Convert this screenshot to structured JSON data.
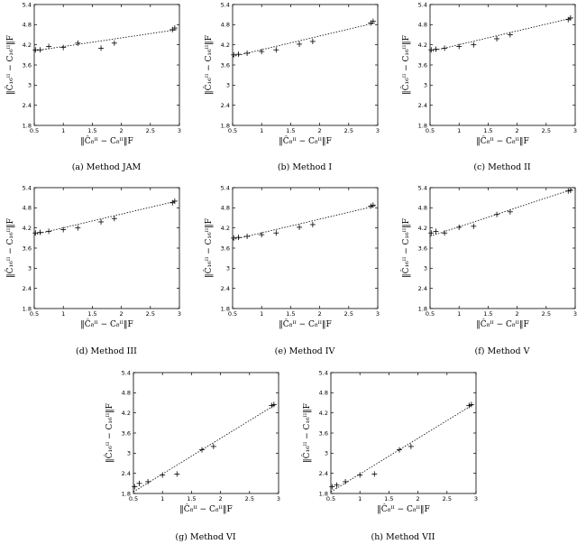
{
  "figure": {
    "chart_data": [
      {
        "type": "scatter",
        "caption": "(a) Method JAM",
        "xlabel": "‖Ĉ₈ᴵᴵ − C₈ᴵᴵ‖F",
        "ylabel": "‖Ĉ₁₆ᴵᴵ − C₁₆ᴵᴵ‖F",
        "xlim": [
          0.5,
          3
        ],
        "ylim": [
          1.8,
          5.4
        ],
        "xticks": [
          "0.5",
          "1",
          "1.5",
          "2",
          "2.5",
          "3"
        ],
        "yticks": [
          "1.8",
          "2.4",
          "3",
          "3.6",
          "4.2",
          "4.8",
          "5.4"
        ],
        "x": [
          0.52,
          0.6,
          0.75,
          1.0,
          1.25,
          1.65,
          1.88,
          2.88,
          2.92
        ],
        "y": [
          4.05,
          4.05,
          4.15,
          4.12,
          4.25,
          4.1,
          4.25,
          4.65,
          4.7
        ],
        "fit": [
          [
            0.5,
            4.02
          ],
          [
            2.95,
            4.65
          ]
        ]
      },
      {
        "type": "scatter",
        "caption": "(b) Method I",
        "xlabel": "‖Ĉ₈ᴵᴵ − C₈ᴵᴵ‖F",
        "ylabel": "‖Ĉ₁₆ᴵᴵ − C₁₆ᴵᴵ‖F",
        "xlim": [
          0.5,
          3
        ],
        "ylim": [
          1.8,
          5.4
        ],
        "xticks": [
          "0.5",
          "1",
          "1.5",
          "2",
          "2.5",
          "3"
        ],
        "yticks": [
          "1.8",
          "2.4",
          "3",
          "3.6",
          "4.2",
          "4.8",
          "5.4"
        ],
        "x": [
          0.52,
          0.6,
          0.75,
          1.0,
          1.25,
          1.65,
          1.88,
          2.88,
          2.92
        ],
        "y": [
          3.9,
          3.92,
          3.95,
          4.0,
          4.05,
          4.22,
          4.3,
          4.85,
          4.9
        ],
        "fit": [
          [
            0.5,
            3.85
          ],
          [
            2.95,
            4.85
          ]
        ]
      },
      {
        "type": "scatter",
        "caption": "(c) Method II",
        "xlabel": "‖Ĉ₈ᴵᴵ − C₈ᴵᴵ‖F",
        "ylabel": "‖Ĉ₁₆ᴵᴵ − C₁₆ᴵᴵ‖F",
        "xlim": [
          0.5,
          3
        ],
        "ylim": [
          1.8,
          5.4
        ],
        "xticks": [
          "0.5",
          "1",
          "1.5",
          "2",
          "2.5",
          "3"
        ],
        "yticks": [
          "1.8",
          "2.4",
          "3",
          "3.6",
          "4.2",
          "4.8",
          "5.4"
        ],
        "x": [
          0.52,
          0.6,
          0.75,
          1.0,
          1.25,
          1.65,
          1.88,
          2.88,
          2.92
        ],
        "y": [
          4.05,
          4.07,
          4.1,
          4.15,
          4.2,
          4.38,
          4.5,
          4.95,
          5.0
        ],
        "fit": [
          [
            0.5,
            4.0
          ],
          [
            2.95,
            5.0
          ]
        ]
      },
      {
        "type": "scatter",
        "caption": "(d) Method III",
        "xlabel": "‖Ĉ₈ᴵᴵ − C₈ᴵᴵ‖F",
        "ylabel": "‖Ĉ₁₆ᴵᴵ − C₁₆ᴵᴵ‖F",
        "xlim": [
          0.5,
          3
        ],
        "ylim": [
          1.8,
          5.4
        ],
        "xticks": [
          "0.5",
          "1",
          "1.5",
          "2",
          "2.5",
          "3"
        ],
        "yticks": [
          "1.8",
          "2.4",
          "3",
          "3.6",
          "4.2",
          "4.8",
          "5.4"
        ],
        "x": [
          0.52,
          0.6,
          0.75,
          1.0,
          1.25,
          1.65,
          1.88,
          2.88,
          2.92
        ],
        "y": [
          4.05,
          4.07,
          4.1,
          4.15,
          4.2,
          4.38,
          4.48,
          4.95,
          5.0
        ],
        "fit": [
          [
            0.5,
            4.0
          ],
          [
            2.95,
            5.0
          ]
        ]
      },
      {
        "type": "scatter",
        "caption": "(e) Method IV",
        "xlabel": "‖Ĉ₈ᴵᴵ − C₈ᴵᴵ‖F",
        "ylabel": "‖Ĉ₁₆ᴵᴵ − C₁₆ᴵᴵ‖F",
        "xlim": [
          0.5,
          3
        ],
        "ylim": [
          1.8,
          5.4
        ],
        "xticks": [
          "0.5",
          "1",
          "1.5",
          "2",
          "2.5",
          "3"
        ],
        "yticks": [
          "1.8",
          "2.4",
          "3",
          "3.6",
          "4.2",
          "4.8",
          "5.4"
        ],
        "x": [
          0.52,
          0.6,
          0.75,
          1.0,
          1.25,
          1.65,
          1.88,
          2.88,
          2.92
        ],
        "y": [
          3.9,
          3.92,
          3.95,
          4.0,
          4.05,
          4.22,
          4.3,
          4.85,
          4.88
        ],
        "fit": [
          [
            0.5,
            3.85
          ],
          [
            2.95,
            4.85
          ]
        ]
      },
      {
        "type": "scatter",
        "caption": "(f) Method V",
        "xlabel": "‖Ĉ₈ᴵᴵ − C₈ᴵᴵ‖F",
        "ylabel": "‖Ĉ₁₆ᴵᴵ − C₁₆ᴵᴵ‖F",
        "xlim": [
          0.5,
          3
        ],
        "ylim": [
          1.8,
          5.4
        ],
        "xticks": [
          "0.5",
          "1",
          "1.5",
          "2",
          "2.5",
          "3"
        ],
        "yticks": [
          "1.8",
          "2.4",
          "3",
          "3.6",
          "4.2",
          "4.8",
          "5.4"
        ],
        "x": [
          0.52,
          0.6,
          0.75,
          1.0,
          1.25,
          1.65,
          1.88,
          2.88,
          2.92
        ],
        "y": [
          4.05,
          4.1,
          4.05,
          4.22,
          4.25,
          4.6,
          4.68,
          5.3,
          5.32
        ],
        "fit": [
          [
            0.5,
            3.95
          ],
          [
            2.95,
            5.35
          ]
        ]
      },
      {
        "type": "scatter",
        "caption": "(g) Method VI",
        "xlabel": "‖Ĉ₈ᴵᴵ − C₈ᴵᴵ‖F",
        "ylabel": "‖Ĉ₁₆ᴵᴵ − C₁₆ᴵᴵ‖F",
        "xlim": [
          0.5,
          3
        ],
        "ylim": [
          1.8,
          5.4
        ],
        "xticks": [
          "0.5",
          "1",
          "1.5",
          "2",
          "2.5",
          "3"
        ],
        "yticks": [
          "1.8",
          "2.4",
          "3",
          "3.6",
          "4.2",
          "4.8",
          "5.4"
        ],
        "x": [
          0.52,
          0.6,
          0.75,
          1.0,
          1.25,
          1.68,
          1.88,
          2.88,
          2.92
        ],
        "y": [
          2.0,
          2.1,
          2.15,
          2.35,
          2.38,
          3.1,
          3.2,
          4.42,
          4.45
        ],
        "fit": [
          [
            0.5,
            1.85
          ],
          [
            2.95,
            4.45
          ]
        ]
      },
      {
        "type": "scatter",
        "caption": "(h) Method VII",
        "xlabel": "‖Ĉ₈ᴵᴵ − C₈ᴵᴵ‖F",
        "ylabel": "‖Ĉ₁₆ᴵᴵ − C₁₆ᴵᴵ‖F",
        "xlim": [
          0.5,
          3
        ],
        "ylim": [
          1.8,
          5.4
        ],
        "xticks": [
          "0.5",
          "1",
          "1.5",
          "2",
          "2.5",
          "3"
        ],
        "yticks": [
          "1.8",
          "2.4",
          "3",
          "3.6",
          "4.2",
          "4.8",
          "5.4"
        ],
        "x": [
          0.52,
          0.6,
          0.75,
          1.0,
          1.25,
          1.68,
          1.88,
          2.88,
          2.92
        ],
        "y": [
          2.0,
          2.05,
          2.15,
          2.35,
          2.38,
          3.1,
          3.2,
          4.42,
          4.45
        ],
        "fit": [
          [
            0.5,
            1.85
          ],
          [
            2.95,
            4.45
          ]
        ]
      }
    ]
  }
}
